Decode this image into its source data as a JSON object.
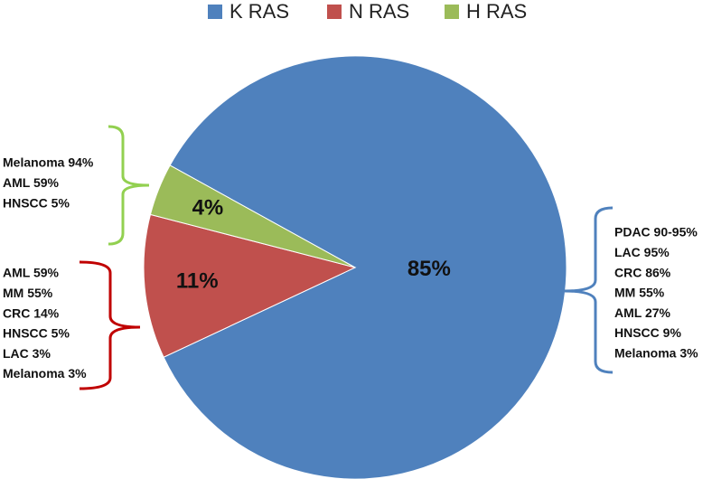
{
  "chart_data": {
    "type": "pie",
    "categories": [
      "K RAS",
      "N RAS",
      "H RAS"
    ],
    "values": [
      85,
      11,
      4
    ],
    "value_labels": [
      "85%",
      "11%",
      "4%"
    ],
    "colors": [
      "#4f81bd",
      "#c0504d",
      "#9bbb59"
    ],
    "legend": "top",
    "annotations": [
      [
        "PDAC 90-95%",
        "LAC 95%",
        "CRC 86%",
        "MM 55%",
        "AML 27%",
        "HNSCC 9%",
        "Melanoma 3%"
      ],
      [
        "AML 59%",
        "MM 55%",
        "CRC 14%",
        "HNSCC 5%",
        "LAC 3%",
        "Melanoma 3%"
      ],
      [
        "Melanoma 94%",
        "AML 59%",
        "HNSCC 5%"
      ]
    ]
  }
}
